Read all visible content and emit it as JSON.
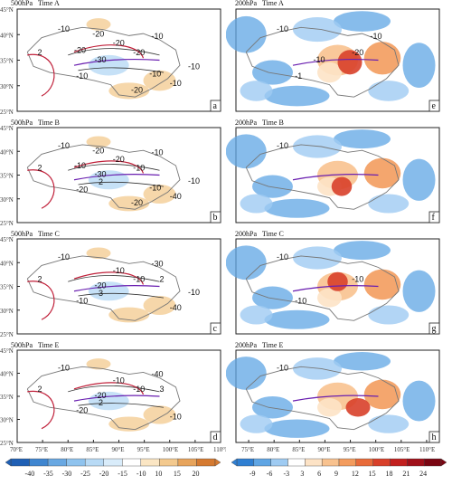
{
  "left_title_prefix": "500hPa",
  "right_title_prefix": "200hPa",
  "panels": [
    {
      "id": "a",
      "title": "500hPa   Time A",
      "letter": "a"
    },
    {
      "id": "b",
      "title": "500hPa   Time B",
      "letter": "b"
    },
    {
      "id": "c",
      "title": "500hPa   Time C",
      "letter": "c"
    },
    {
      "id": "d",
      "title": "500hPa   Time E",
      "letter": "d"
    },
    {
      "id": "e",
      "title": "200hPa   Time A",
      "letter": "e"
    },
    {
      "id": "f",
      "title": "200hPa   Time B",
      "letter": "f"
    },
    {
      "id": "g",
      "title": "200hPa   Time C",
      "letter": "g"
    },
    {
      "id": "h",
      "title": "200hPa   Time E",
      "letter": "h"
    }
  ],
  "lat_ticks": [
    "45°N",
    "40°N",
    "35°N",
    "30°N",
    "25°N"
  ],
  "lon_ticks_left": [
    "70°E",
    "75°E",
    "80°E",
    "85°E",
    "90°E",
    "95°E",
    "100°E",
    "105°E",
    "110°E"
  ],
  "lon_ticks_right": [
    "75°E",
    "80°E",
    "85°E",
    "90°E",
    "95°E",
    "100°E",
    "105°E",
    "110°E"
  ],
  "colorbar_left": {
    "labels": [
      "-40",
      "-35",
      "-30",
      "-25",
      "-20",
      "-15",
      "-10",
      "10",
      "15",
      "20"
    ],
    "colors": [
      "#1f5fb4",
      "#3f86d0",
      "#69a8e2",
      "#8fc3ee",
      "#b8daf5",
      "#d9ecfa",
      "#ffffff",
      "#fbe6c4",
      "#f3c98e",
      "#e7a45c",
      "#d57a31"
    ]
  },
  "colorbar_right": {
    "labels": [
      "-9",
      "-6",
      "-3",
      "3",
      "6",
      "9",
      "12",
      "15",
      "18",
      "21",
      "24"
    ],
    "colors": [
      "#2f7fd2",
      "#5fa5e4",
      "#9fcbf2",
      "#ffffff",
      "#fde3c6",
      "#f8c28f",
      "#f39c5e",
      "#e86b3a",
      "#d8402a",
      "#c2201f",
      "#a0101a",
      "#7a0612"
    ]
  },
  "contour_labels": {
    "a": [
      "-10",
      "-20",
      "-10",
      "-10",
      "-30",
      "-10",
      "-20",
      "-10",
      "-20",
      "-20",
      "-10",
      "-20"
    ],
    "b": [
      "-10",
      "-10",
      "-20",
      "-10",
      "-30",
      "-40",
      "-20",
      "-10",
      "-20",
      "-10",
      "-10",
      "-20"
    ],
    "c": [
      "-10",
      "-10",
      "-10",
      "-30",
      "-20",
      "-40",
      "-10",
      "-10"
    ],
    "d": [
      "-10",
      "-10",
      "-20",
      "-40",
      "-20",
      "-10",
      "-10"
    ],
    "e": [
      "-10",
      "-20",
      "-1",
      "-10",
      "-10"
    ],
    "f": [
      "-10"
    ],
    "g": [
      "-10",
      "-10",
      "-10"
    ],
    "h": [
      "-10"
    ]
  },
  "line_labels": {
    "a": [
      "2"
    ],
    "b": [
      "2",
      "2"
    ],
    "c": [
      "2",
      "3",
      "2"
    ],
    "d": [
      "2",
      "2",
      "3"
    ]
  }
}
